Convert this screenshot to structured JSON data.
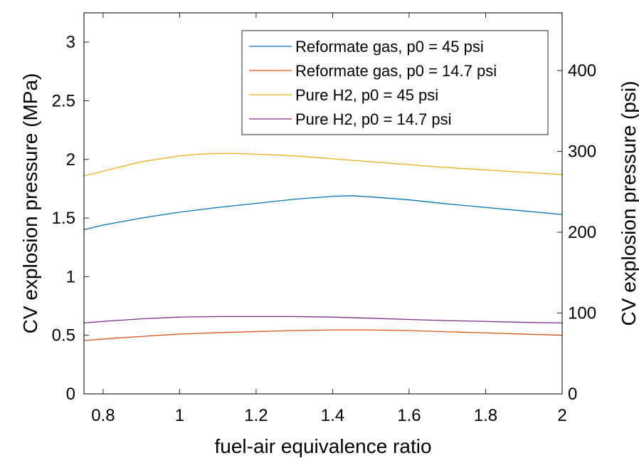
{
  "chart_data": {
    "type": "line",
    "xlabel": "fuel-air equivalence ratio",
    "ylabel_left": "CV explosion pressure (MPa)",
    "ylabel_right": "CV explosion pressure (psi)",
    "xlim": [
      0.75,
      2.0
    ],
    "ylim_left": [
      0,
      3.25
    ],
    "ylim_right": [
      0,
      471.4
    ],
    "x_ticks": [
      0.8,
      1,
      1.2,
      1.4,
      1.6,
      1.8,
      2
    ],
    "x_tick_labels": [
      "0.8",
      "1",
      "1.2",
      "1.4",
      "1.6",
      "1.8",
      "2"
    ],
    "y_left_ticks": [
      0,
      0.5,
      1,
      1.5,
      2,
      2.5,
      3
    ],
    "y_left_tick_labels": [
      "0",
      "0.5",
      "1",
      "1.5",
      "2",
      "2.5",
      "3"
    ],
    "y_right_ticks": [
      0,
      100,
      200,
      300,
      400
    ],
    "y_right_tick_labels": [
      "0",
      "100",
      "200",
      "300",
      "400"
    ],
    "legend_position": "top-right",
    "grid": false,
    "series": [
      {
        "name": "Reformate gas, p0 = 45 psi",
        "color": "#0072BD",
        "x": [
          0.75,
          0.8,
          0.9,
          1.0,
          1.1,
          1.2,
          1.3,
          1.4,
          1.45,
          1.5,
          1.6,
          1.7,
          1.8,
          1.9,
          2.0
        ],
        "y": [
          1.4,
          1.44,
          1.5,
          1.55,
          1.59,
          1.625,
          1.66,
          1.685,
          1.69,
          1.68,
          1.655,
          1.62,
          1.59,
          1.56,
          1.53
        ]
      },
      {
        "name": "Reformate gas, p0 = 14.7 psi",
        "color": "#D95319",
        "x": [
          0.75,
          0.8,
          0.9,
          1.0,
          1.1,
          1.2,
          1.3,
          1.4,
          1.5,
          1.6,
          1.7,
          1.8,
          1.9,
          2.0
        ],
        "y": [
          0.455,
          0.468,
          0.49,
          0.51,
          0.522,
          0.532,
          0.54,
          0.545,
          0.545,
          0.54,
          0.53,
          0.52,
          0.51,
          0.5
        ]
      },
      {
        "name": "Pure H2, p0 = 45 psi",
        "color": "#EDB120",
        "x": [
          0.75,
          0.8,
          0.9,
          1.0,
          1.05,
          1.1,
          1.15,
          1.2,
          1.3,
          1.4,
          1.5,
          1.6,
          1.7,
          1.8,
          1.9,
          2.0
        ],
        "y": [
          1.86,
          1.9,
          1.98,
          2.03,
          2.045,
          2.05,
          2.05,
          2.045,
          2.03,
          2.005,
          1.98,
          1.955,
          1.93,
          1.91,
          1.89,
          1.87
        ]
      },
      {
        "name": "Pure H2, p0 = 14.7 psi",
        "color": "#7E2F8E",
        "x": [
          0.75,
          0.8,
          0.9,
          1.0,
          1.1,
          1.2,
          1.3,
          1.4,
          1.5,
          1.6,
          1.7,
          1.8,
          1.9,
          2.0
        ],
        "y": [
          0.605,
          0.618,
          0.64,
          0.655,
          0.66,
          0.66,
          0.66,
          0.655,
          0.645,
          0.635,
          0.625,
          0.618,
          0.61,
          0.605
        ]
      }
    ]
  }
}
